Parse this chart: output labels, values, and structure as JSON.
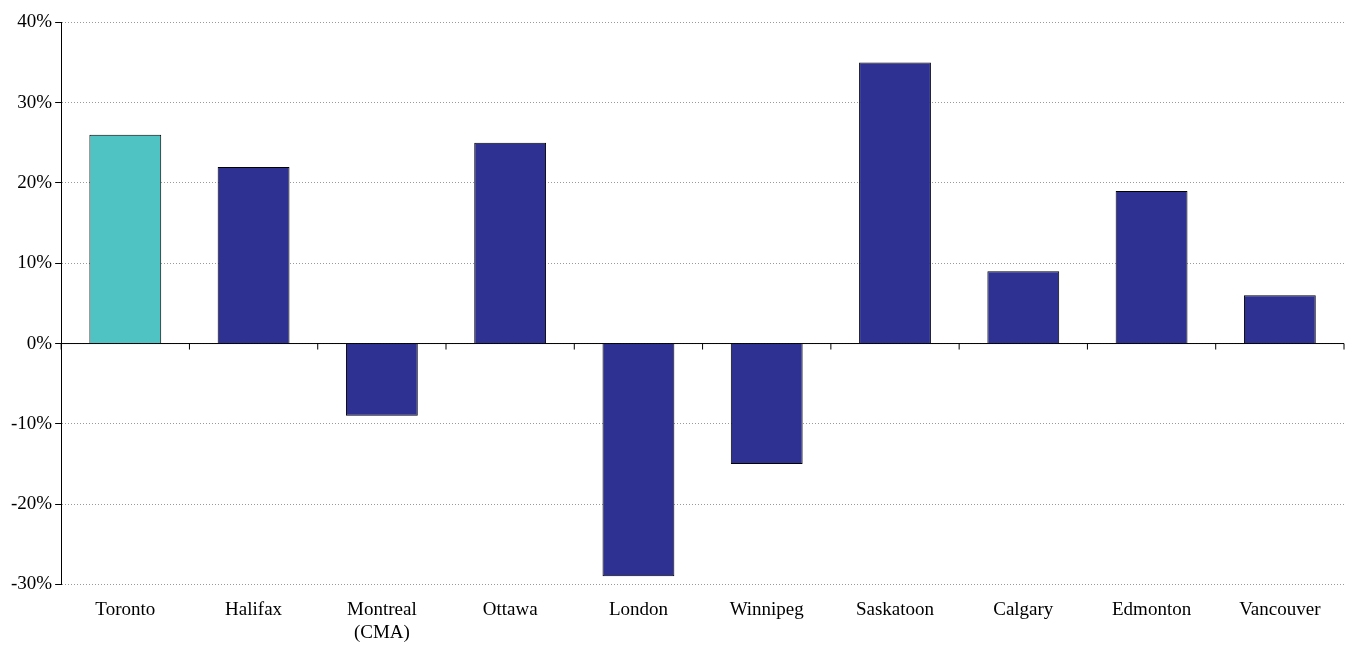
{
  "chart_data": {
    "type": "bar",
    "categories": [
      "Toronto",
      "Halifax",
      "Montreal (CMA)",
      "Ottawa",
      "London",
      "Winnipeg",
      "Saskatoon",
      "Calgary",
      "Edmonton",
      "Vancouver"
    ],
    "values": [
      26,
      22,
      -9,
      25,
      -29,
      -15,
      35,
      9,
      19,
      6
    ],
    "colors": [
      "#4fc3c3",
      "#2e3192",
      "#2e3192",
      "#2e3192",
      "#2e3192",
      "#2e3192",
      "#2e3192",
      "#2e3192",
      "#2e3192",
      "#2e3192"
    ],
    "ylim": [
      -30,
      40
    ],
    "yticks": [
      {
        "value": -30,
        "label": "-30%"
      },
      {
        "value": -20,
        "label": "-20%"
      },
      {
        "value": -10,
        "label": "-10%"
      },
      {
        "value": 0,
        "label": "0%"
      },
      {
        "value": 10,
        "label": "10%"
      },
      {
        "value": 20,
        "label": "20%"
      },
      {
        "value": 30,
        "label": "30%"
      },
      {
        "value": 40,
        "label": "40%"
      }
    ],
    "grid": "y",
    "legend": false
  }
}
